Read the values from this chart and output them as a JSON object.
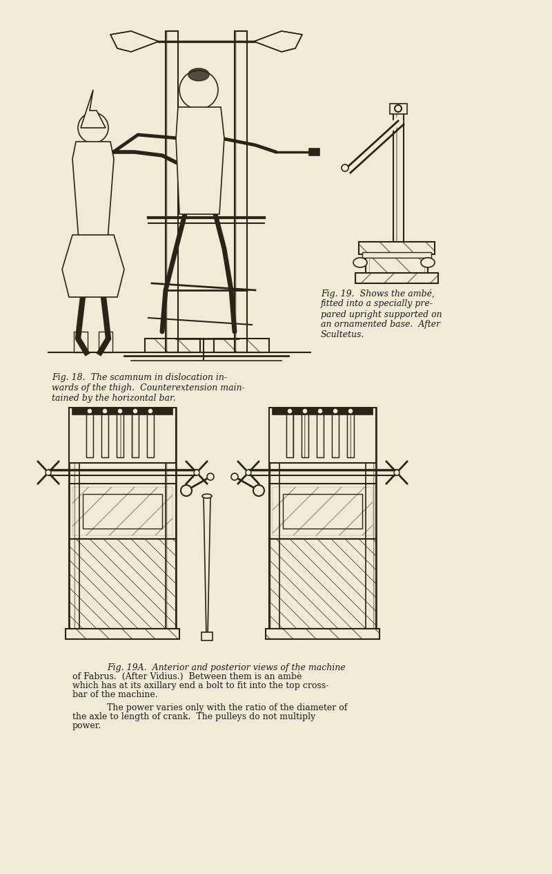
{
  "background_color": "#f0ead6",
  "page_width": 8.0,
  "page_height": 12.65,
  "dpi": 100,
  "fig19_caption": "Fig. 19.  Shows the ambé,\nfitted into a specially pre-\npared upright supported on\nan ornamented base.  After\nScultetus.",
  "fig18_caption": "Fig. 18.  The scamnum in dislocation in-\nwards of the thigh.  Counterextension main-\ntained by the horizontal bar.",
  "fig19a_caption_line1": "Fig. 19A.  Anterior and posterior views of the machine",
  "fig19a_caption_line2": "of Fabrus.  (After Vidius.)  Between them is an ambè",
  "fig19a_caption_line3": "which has at its axillary end a bolt to fit into the top cross-",
  "fig19a_caption_line4": "bar of the machine.",
  "fig19a_caption_line5": "The power varies only with the ratio of the diameter of",
  "fig19a_caption_line6": "the axle to length of crank.  The pulleys do not multiply",
  "fig19a_caption_line7": "power.",
  "line_color": "#2a2318",
  "text_color": "#1a1a1a",
  "caption_fontsize": 9.0,
  "caption_fontsize_small": 8.5
}
